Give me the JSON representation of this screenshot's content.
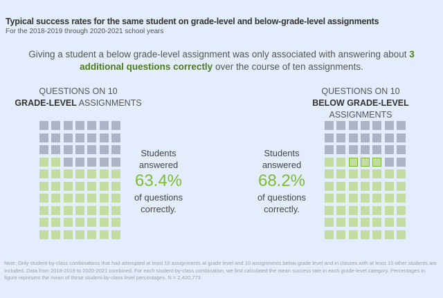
{
  "header": {
    "title": "Typical success rates for the same student on grade-level and below-grade-level assignments",
    "subtitle": "For the 2018-2019 through 2020-2021 school years"
  },
  "summary": {
    "before": "Giving a student a below grade-level assignment was only associated with answering about ",
    "highlight": "3 additional questions correctly",
    "after": " over the course of ten assignments."
  },
  "chart_data": [
    {
      "type": "waffle",
      "title_line1": "QUESTIONS ON 10",
      "title_bold": "GRADE-LEVEL",
      "title_rest": " ASSIGNMENTS",
      "rows": 10,
      "columns": 7,
      "total": 70,
      "correct": 44,
      "highlighted": 0,
      "stat_line1": "Students",
      "stat_line2": "answered",
      "value_label": "63.4%",
      "value": 63.4,
      "stat_line3": "of questions",
      "stat_line4": "correctly."
    },
    {
      "type": "waffle",
      "title_line1": "QUESTIONS ON 10",
      "title_bold": "BELOW GRADE-LEVEL",
      "title_rest": " ASSIGNMENTS",
      "rows": 10,
      "columns": 7,
      "total": 70,
      "correct": 47,
      "highlighted": 3,
      "stat_line1": "Students",
      "stat_line2": "answered",
      "value_label": "68.2%",
      "value": 68.2,
      "stat_line3": "of questions",
      "stat_line4": "correctly."
    }
  ],
  "colors": {
    "background": "#e4edfb",
    "incorrect": "#adb3c6",
    "correct": "#c3dca0",
    "highlight_border": "#7cb82f",
    "percent": "#7dbb2f",
    "emphasis": "#4f7a1e"
  },
  "note": "Note: Only student-by-class combinations that had attempted at least 10 assignments at grade level and 10 assignments below grade level and in classes with at least 10 other students are included. Data from 2018-2019 to 2020-2021 combined. For each student-by-class combination, we first calculated the mean success rate in each grade-level category. Percentages in figure represent the mean of these student-by-class level percentages. N = 2,420,773."
}
